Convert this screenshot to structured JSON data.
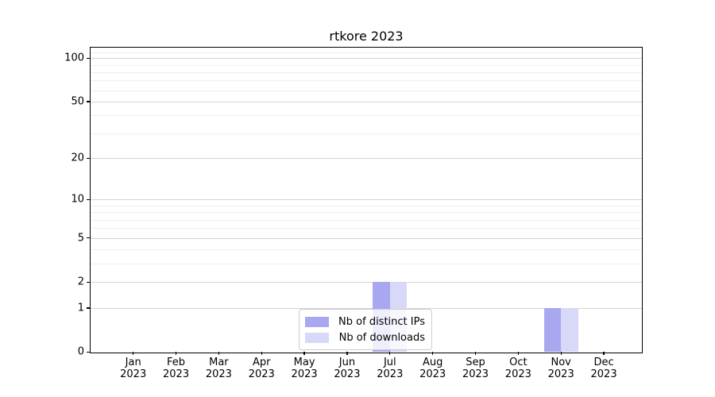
{
  "chart_data": {
    "type": "bar",
    "title": "rtkore 2023",
    "x_months": [
      "Jan",
      "Feb",
      "Mar",
      "Apr",
      "May",
      "Jun",
      "Jul",
      "Aug",
      "Sep",
      "Oct",
      "Nov",
      "Dec"
    ],
    "x_year": "2023",
    "series": [
      {
        "name": "Nb of distinct IPs",
        "color": "#a8a8f0",
        "values": [
          0,
          0,
          0,
          0,
          0,
          0,
          2,
          0,
          0,
          0,
          1,
          0
        ]
      },
      {
        "name": "Nb of downloads",
        "color": "#d8d8f8",
        "values": [
          0,
          0,
          0,
          0,
          0,
          0,
          2,
          0,
          0,
          0,
          1,
          0
        ]
      }
    ],
    "y_ticks": [
      0,
      1,
      2,
      5,
      10,
      20,
      50,
      100
    ],
    "y_minor_ticks": [
      3,
      4,
      6,
      7,
      8,
      9,
      30,
      40,
      60,
      70,
      80,
      90,
      110
    ],
    "y_axis_scale": "log1p",
    "ylim": [
      0,
      118
    ],
    "grid": "horizontal-only",
    "legend_position": "lower-center-inside",
    "colors": {
      "spine": "#000000",
      "grid_major": "#d4d4d4",
      "grid_minor": "#efefef",
      "legend_border": "#cccccc"
    }
  }
}
